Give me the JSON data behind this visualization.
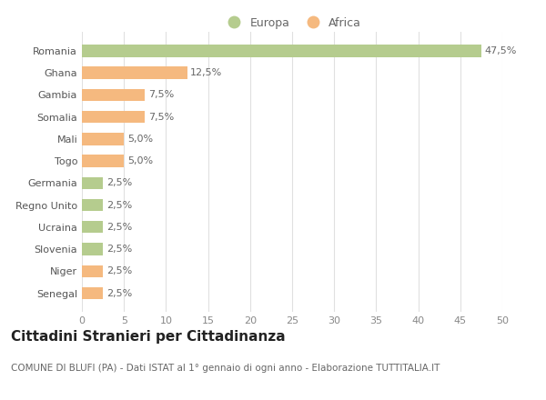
{
  "categories": [
    "Romania",
    "Ghana",
    "Gambia",
    "Somalia",
    "Mali",
    "Togo",
    "Germania",
    "Regno Unito",
    "Ucraina",
    "Slovenia",
    "Niger",
    "Senegal"
  ],
  "values": [
    47.5,
    12.5,
    7.5,
    7.5,
    5.0,
    5.0,
    2.5,
    2.5,
    2.5,
    2.5,
    2.5,
    2.5
  ],
  "labels": [
    "47,5%",
    "12,5%",
    "7,5%",
    "7,5%",
    "5,0%",
    "5,0%",
    "2,5%",
    "2,5%",
    "2,5%",
    "2,5%",
    "2,5%",
    "2,5%"
  ],
  "colors": [
    "#b5cc8e",
    "#f5b97f",
    "#f5b97f",
    "#f5b97f",
    "#f5b97f",
    "#f5b97f",
    "#b5cc8e",
    "#b5cc8e",
    "#b5cc8e",
    "#b5cc8e",
    "#f5b97f",
    "#f5b97f"
  ],
  "legend_europa_color": "#b5cc8e",
  "legend_africa_color": "#f5b97f",
  "xlim": [
    0,
    50
  ],
  "xticks": [
    0,
    5,
    10,
    15,
    20,
    25,
    30,
    35,
    40,
    45,
    50
  ],
  "title": "Cittadini Stranieri per Cittadinanza",
  "subtitle": "COMUNE DI BLUFI (PA) - Dati ISTAT al 1° gennaio di ogni anno - Elaborazione TUTTITALIA.IT",
  "background_color": "#ffffff",
  "grid_color": "#e0e0e0",
  "bar_height": 0.55,
  "title_fontsize": 11,
  "subtitle_fontsize": 7.5,
  "label_fontsize": 8,
  "tick_fontsize": 8,
  "legend_fontsize": 9
}
